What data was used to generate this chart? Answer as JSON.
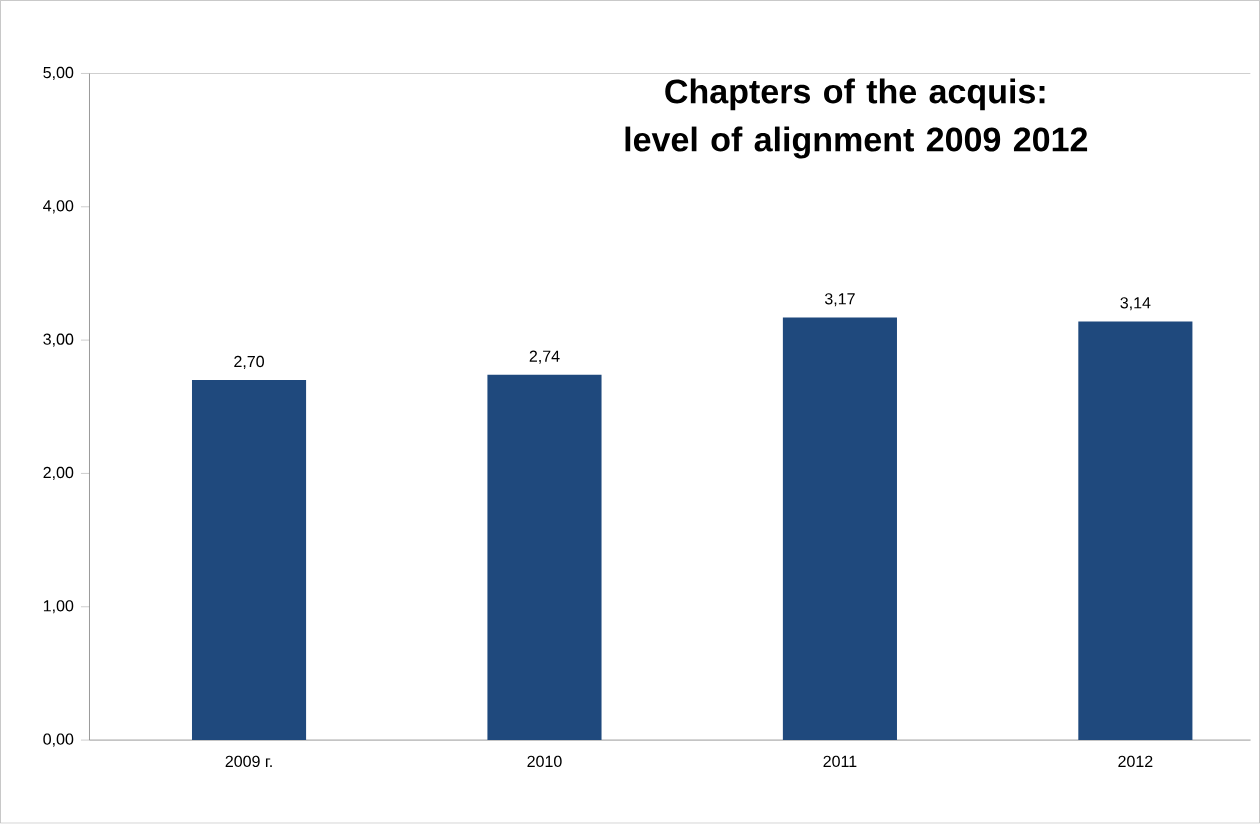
{
  "chart_data": {
    "type": "bar",
    "title": "Chapters of the acquis: level of alignment 2009 2012",
    "categories": [
      "2009 г.",
      "2010",
      "2011",
      "2012"
    ],
    "values": [
      2.7,
      2.74,
      3.17,
      3.14
    ],
    "value_labels": [
      "2,70",
      "2,74",
      "3,17",
      "3,14"
    ],
    "color": "#1f497d",
    "ylim": [
      0,
      5
    ],
    "yticks": [
      {
        "value": 0,
        "label": "0,00"
      },
      {
        "value": 1,
        "label": "1,00"
      },
      {
        "value": 2,
        "label": "2,00"
      },
      {
        "value": 3,
        "label": "3,00"
      },
      {
        "value": 4,
        "label": "4,00"
      },
      {
        "value": 5,
        "label": "5,00"
      }
    ]
  }
}
